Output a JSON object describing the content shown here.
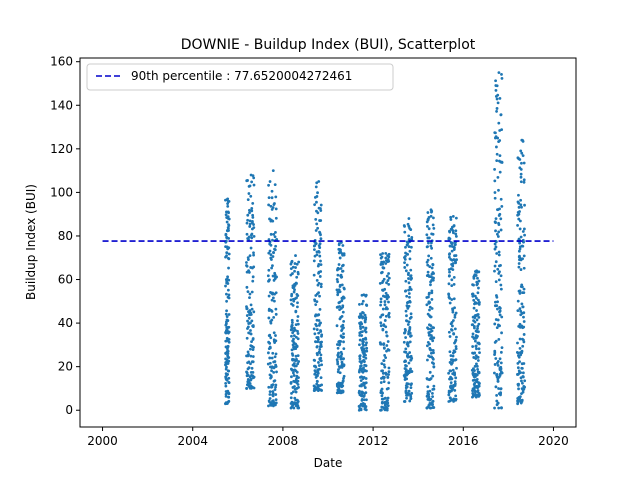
{
  "chart_data": {
    "type": "scatter",
    "title": "DOWNIE - Buildup Index (BUI), Scatterplot",
    "xlabel": "Date",
    "ylabel": "Buildup Index (BUI)",
    "xlim": [
      1999.0,
      2021.0
    ],
    "ylim": [
      -7.7,
      161.7
    ],
    "x_ticks": [
      2000,
      2004,
      2008,
      2012,
      2016,
      2020
    ],
    "y_ticks": [
      0,
      20,
      40,
      60,
      80,
      100,
      120,
      140,
      160
    ],
    "grid": false,
    "legend_position": "top-left",
    "point_color": "#1f77b4",
    "percentile_color": "#0000cc",
    "percentile_line": {
      "label": "90th percentile : 77.6520004272461",
      "value": 77.6520004272461,
      "x_start": 2000.0,
      "x_end": 2020.0
    },
    "seasons": [
      {
        "year": 2005,
        "start": 2005.45,
        "end": 2005.62,
        "max": 97,
        "min": 3
      },
      {
        "year": 2006,
        "start": 2006.38,
        "end": 2006.72,
        "max": 108,
        "min": 10
      },
      {
        "year": 2007,
        "start": 2007.35,
        "end": 2007.72,
        "max": 110,
        "min": 2
      },
      {
        "year": 2008,
        "start": 2008.35,
        "end": 2008.7,
        "max": 71,
        "min": 1
      },
      {
        "year": 2009,
        "start": 2009.38,
        "end": 2009.72,
        "max": 105,
        "min": 9
      },
      {
        "year": 2010,
        "start": 2010.4,
        "end": 2010.72,
        "max": 77,
        "min": 8
      },
      {
        "year": 2011,
        "start": 2011.38,
        "end": 2011.72,
        "max": 53,
        "min": 0
      },
      {
        "year": 2012,
        "start": 2012.32,
        "end": 2012.72,
        "max": 72,
        "min": 0
      },
      {
        "year": 2013,
        "start": 2013.38,
        "end": 2013.72,
        "max": 88,
        "min": 4
      },
      {
        "year": 2014,
        "start": 2014.38,
        "end": 2014.7,
        "max": 92,
        "min": 1
      },
      {
        "year": 2015,
        "start": 2015.35,
        "end": 2015.7,
        "max": 89,
        "min": 4
      },
      {
        "year": 2016,
        "start": 2016.4,
        "end": 2016.72,
        "max": 64,
        "min": 6
      },
      {
        "year": 2017,
        "start": 2017.38,
        "end": 2017.72,
        "max": 155,
        "min": 1
      },
      {
        "year": 2018,
        "start": 2018.4,
        "end": 2018.72,
        "max": 124,
        "min": 3
      }
    ]
  }
}
